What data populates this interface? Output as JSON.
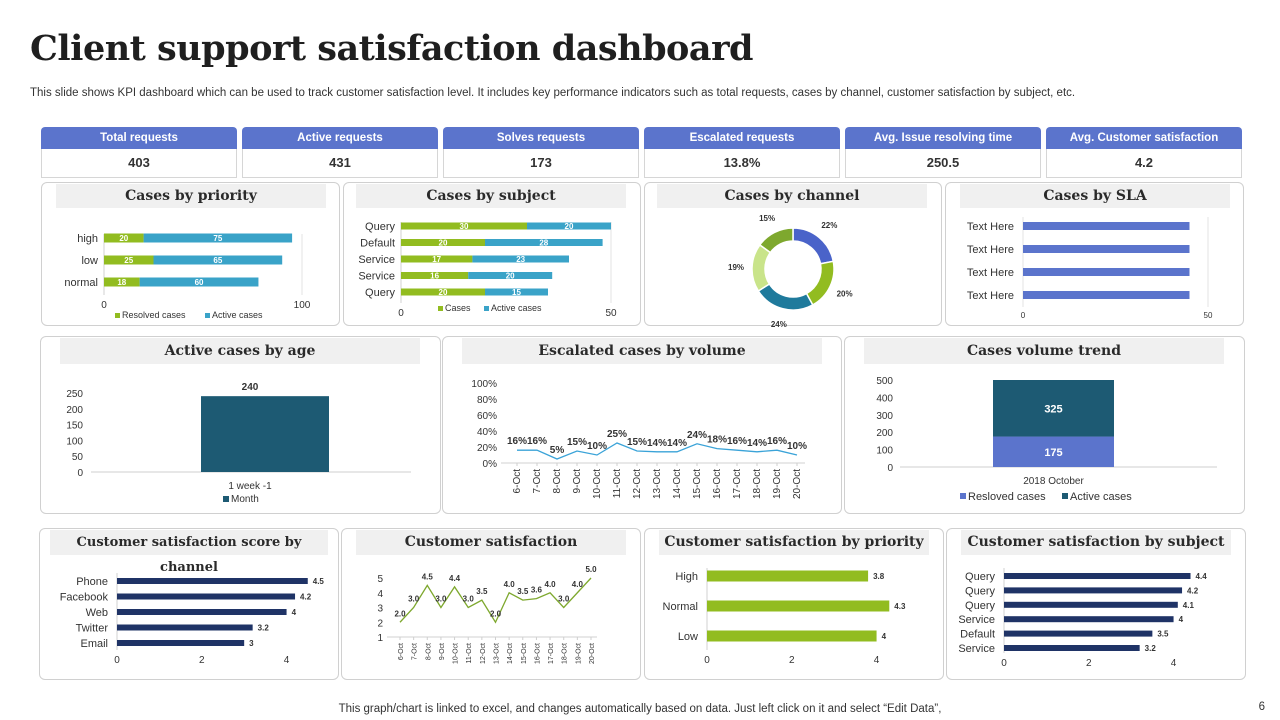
{
  "page": {
    "title": "Client support satisfaction dashboard",
    "subtitle": "This slide shows KPI dashboard which can be used to track customer satisfaction level. It includes key performance indicators such as total requests, cases by channel, customer satisfaction by subject, etc.",
    "footer": "This graph/chart is linked to excel,  and changes automatically based on data. Just left click on it and select “Edit Data”,",
    "page_number": "6"
  },
  "kpis": [
    {
      "label": "Total requests",
      "value": "403"
    },
    {
      "label": "Active requests",
      "value": "431"
    },
    {
      "label": "Solves requests",
      "value": "173"
    },
    {
      "label": "Escalated  requests",
      "value": "13.8%"
    },
    {
      "label": "Avg. Issue resolving time",
      "value": "250.5"
    },
    {
      "label": "Avg. Customer satisfaction",
      "value": "4.2"
    }
  ],
  "colors": {
    "green": "#92bc20",
    "teal": "#3aa3c8",
    "blue": "#5b74cc",
    "navy": "#1f3366",
    "darkteal": "#1d5a73",
    "line": "#3aa3d8",
    "olive": "#7ea82e",
    "lightgreen": "#c9e48a"
  },
  "chart_data": [
    {
      "id": "priority",
      "type": "bar",
      "orientation": "horizontal",
      "stacked": true,
      "title": "Cases by priority",
      "categories": [
        "high",
        "low",
        "normal"
      ],
      "series": [
        {
          "name": "Resolved cases",
          "values": [
            20,
            25,
            18
          ]
        },
        {
          "name": "Active cases",
          "values": [
            75,
            65,
            60
          ]
        }
      ],
      "xlim": [
        0,
        100
      ],
      "ticks": [
        "0",
        "100"
      ]
    },
    {
      "id": "subject",
      "type": "bar",
      "orientation": "horizontal",
      "stacked": true,
      "title": "Cases by subject",
      "categories": [
        "Query",
        "Default",
        "Service",
        "Service",
        "Query"
      ],
      "series": [
        {
          "name": "Cases",
          "values": [
            30,
            20,
            17,
            16,
            20
          ]
        },
        {
          "name": "Active cases",
          "values": [
            20,
            28,
            23,
            20,
            15
          ]
        }
      ],
      "xlim": [
        0,
        50
      ],
      "ticks": [
        "0",
        "50"
      ]
    },
    {
      "id": "channel",
      "type": "pie",
      "donut": true,
      "title": "Cases by channel",
      "values": [
        22,
        20,
        24,
        19,
        15
      ],
      "labels": [
        "22%",
        "20%",
        "24%",
        "19%",
        "15%"
      ]
    },
    {
      "id": "sla",
      "type": "bar",
      "orientation": "horizontal",
      "title": "Cases by SLA",
      "categories": [
        "Text Here",
        "Text Here",
        "Text Here",
        "Text Here"
      ],
      "values": [
        45,
        45,
        45,
        45
      ],
      "xlim": [
        0,
        50
      ],
      "ticks": [
        "0",
        "50"
      ]
    },
    {
      "id": "age",
      "type": "bar",
      "title": "Active cases by age",
      "categories": [
        "1 week -1"
      ],
      "values": [
        240
      ],
      "value_labels": [
        "240"
      ],
      "legend": "Month",
      "ylim": [
        0,
        250
      ],
      "yticks": [
        "250",
        "200",
        "150",
        "100",
        "50",
        "0"
      ]
    },
    {
      "id": "escalated",
      "type": "line",
      "title": "Escalated cases by volume",
      "x": [
        "6-Oct",
        "7-Oct",
        "8-Oct",
        "9-Oct",
        "10-Oct",
        "11-Oct",
        "12-Oct",
        "13-Oct",
        "14-Oct",
        "15-Oct",
        "16-Oct",
        "17-Oct",
        "18-Oct",
        "19-Oct",
        "20-Oct"
      ],
      "values": [
        16,
        16,
        5,
        15,
        10,
        25,
        15,
        14,
        14,
        24,
        18,
        16,
        14,
        16,
        10
      ],
      "value_labels": [
        "16%",
        "16%",
        "5%",
        "15%",
        "10%",
        "25%",
        "15%",
        "14%",
        "14%",
        "24%",
        "18%",
        "16%",
        "14%",
        "16%",
        "10%"
      ],
      "ylim": [
        0,
        100
      ],
      "yticks": [
        "100%",
        "80%",
        "60%",
        "40%",
        "20%",
        "0%"
      ]
    },
    {
      "id": "trend",
      "type": "bar",
      "stacked": true,
      "title": "Cases volume trend",
      "categories": [
        "2018 October"
      ],
      "series": [
        {
          "name": "Resloved cases",
          "values": [
            175
          ]
        },
        {
          "name": "Active cases",
          "values": [
            325
          ]
        }
      ],
      "ylim": [
        0,
        500
      ],
      "yticks": [
        "500",
        "400",
        "300",
        "200",
        "100",
        "0"
      ]
    },
    {
      "id": "score_channel",
      "type": "bar",
      "orientation": "horizontal",
      "title": "Customer satisfaction score by channel",
      "categories": [
        "Phone",
        "Facebook",
        "Web",
        "Twitter",
        "Email"
      ],
      "values": [
        4.5,
        4.2,
        4,
        3.2,
        3
      ],
      "value_labels": [
        "4.5",
        "4.2",
        "4",
        "3.2",
        "3"
      ],
      "xlim": [
        0,
        4.6
      ],
      "ticks": [
        "0",
        "2",
        "4"
      ]
    },
    {
      "id": "satisfaction",
      "type": "line",
      "title": "Customer satisfaction",
      "x": [
        "6-Oct",
        "7-Oct",
        "8-Oct",
        "9-Oct",
        "10-Oct",
        "11-Oct",
        "12-Oct",
        "13-Oct",
        "14-Oct",
        "15-Oct",
        "16-Oct",
        "17-Oct",
        "18-Oct",
        "19-Oct",
        "20-Oct"
      ],
      "values": [
        2.0,
        3.0,
        4.5,
        3.0,
        4.4,
        3.0,
        3.5,
        2.0,
        4.0,
        3.5,
        3.6,
        4.0,
        3.0,
        4.0,
        5.0
      ],
      "value_labels": [
        "2.0",
        "3.0",
        "4.5",
        "3.0",
        "4.4",
        "3.0",
        "3.5",
        "2.0",
        "4.0",
        "3.5",
        "3.6",
        "4.0",
        "3.0",
        "4.0",
        "5.0"
      ],
      "ylim": [
        1,
        5
      ],
      "yticks": [
        "5",
        "4",
        "3",
        "2",
        "1"
      ]
    },
    {
      "id": "score_priority",
      "type": "bar",
      "orientation": "horizontal",
      "title": "Customer satisfaction by priority",
      "categories": [
        "High",
        "Normal",
        "Low"
      ],
      "values": [
        3.8,
        4.3,
        4
      ],
      "value_labels": [
        "3.8",
        "4.3",
        "4"
      ],
      "xlim": [
        0,
        4.6
      ],
      "ticks": [
        "0",
        "2",
        "4"
      ]
    },
    {
      "id": "score_subject",
      "type": "bar",
      "orientation": "horizontal",
      "title": "Customer satisfaction by subject",
      "categories": [
        "Query",
        "Query",
        "Query",
        "Service",
        "Default",
        "Service"
      ],
      "values": [
        4.4,
        4.2,
        4.1,
        4,
        3.5,
        3.2
      ],
      "value_labels": [
        "4.4",
        "4.2",
        "4.1",
        "4",
        "3.5",
        "3.2"
      ],
      "xlim": [
        0,
        4.6
      ],
      "ticks": [
        "0",
        "2",
        "4"
      ]
    }
  ]
}
